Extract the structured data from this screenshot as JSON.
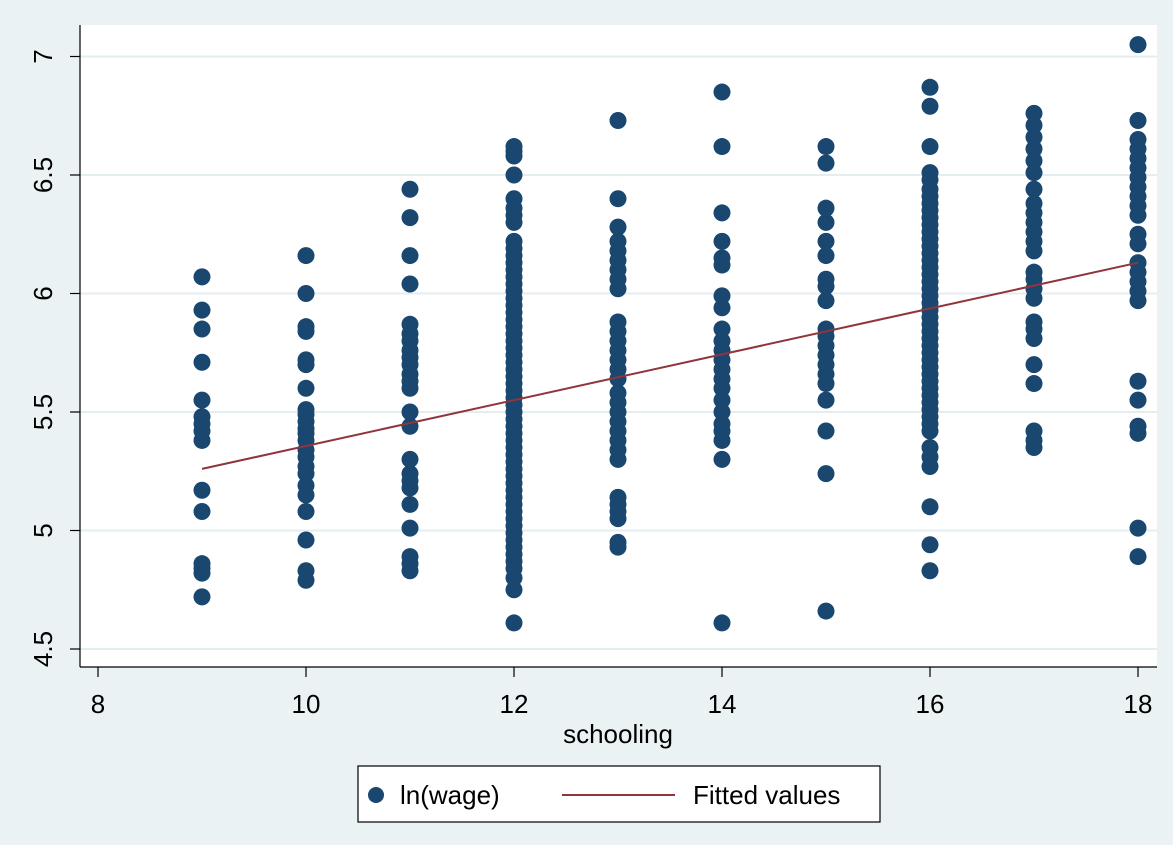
{
  "chart_data": {
    "type": "scatter",
    "title": "",
    "xlabel": "schooling",
    "ylabel": "",
    "xlim": [
      8,
      18.1
    ],
    "ylim": [
      4.45,
      7.1
    ],
    "xticks": [
      8,
      10,
      12,
      14,
      16,
      18
    ],
    "yticks": [
      4.5,
      5,
      5.5,
      6,
      6.5,
      7
    ],
    "xtick_labels": [
      "8",
      "10",
      "12",
      "14",
      "16",
      "18"
    ],
    "ytick_labels": [
      "4.5",
      "5",
      "5.5",
      "6",
      "6.5",
      "7"
    ],
    "grid": "horizontal",
    "legend_position": "bottom",
    "colors": {
      "background": "#eaf2f3",
      "plot_area": "#ffffff",
      "gridline": "#e4eef0",
      "marker": "#1a476f",
      "fit_line": "#90353b"
    },
    "series": [
      {
        "name": "ln(wage)",
        "kind": "scatter",
        "points": {
          "9": [
            4.72,
            4.82,
            4.84,
            4.86,
            5.08,
            5.17,
            5.38,
            5.42,
            5.45,
            5.48,
            5.55,
            5.71,
            5.85,
            5.93,
            6.07
          ],
          "10": [
            4.79,
            4.83,
            4.96,
            5.08,
            5.15,
            5.19,
            5.24,
            5.27,
            5.31,
            5.34,
            5.38,
            5.41,
            5.43,
            5.46,
            5.49,
            5.51,
            5.6,
            5.7,
            5.72,
            5.84,
            5.86,
            6.0,
            6.16
          ],
          "11": [
            4.83,
            4.86,
            4.89,
            5.01,
            5.11,
            5.18,
            5.21,
            5.24,
            5.3,
            5.44,
            5.5,
            5.6,
            5.63,
            5.66,
            5.7,
            5.73,
            5.76,
            5.8,
            5.83,
            5.87,
            6.04,
            6.16,
            6.32,
            6.44
          ],
          "12": [
            4.61,
            4.75,
            4.8,
            4.84,
            4.87,
            4.9,
            4.93,
            4.96,
            4.99,
            5.02,
            5.05,
            5.08,
            5.11,
            5.14,
            5.17,
            5.2,
            5.23,
            5.26,
            5.29,
            5.32,
            5.35,
            5.38,
            5.41,
            5.44,
            5.47,
            5.5,
            5.53,
            5.56,
            5.59,
            5.62,
            5.65,
            5.68,
            5.71,
            5.74,
            5.77,
            5.8,
            5.83,
            5.86,
            5.89,
            5.92,
            5.95,
            5.98,
            6.01,
            6.04,
            6.07,
            6.1,
            6.13,
            6.16,
            6.19,
            6.22,
            6.3,
            6.33,
            6.36,
            6.4,
            6.5,
            6.58,
            6.6,
            6.62
          ],
          "13": [
            4.93,
            4.95,
            5.05,
            5.08,
            5.11,
            5.14,
            5.3,
            5.34,
            5.38,
            5.42,
            5.46,
            5.5,
            5.54,
            5.58,
            5.64,
            5.68,
            5.72,
            5.76,
            5.8,
            5.84,
            5.88,
            6.02,
            6.06,
            6.1,
            6.14,
            6.18,
            6.22,
            6.28,
            6.4,
            6.73
          ],
          "14": [
            4.61,
            5.3,
            5.38,
            5.42,
            5.45,
            5.5,
            5.55,
            5.6,
            5.64,
            5.68,
            5.72,
            5.76,
            5.8,
            5.85,
            5.94,
            5.99,
            6.12,
            6.15,
            6.22,
            6.34,
            6.62,
            6.85
          ],
          "15": [
            4.66,
            5.24,
            5.42,
            5.55,
            5.62,
            5.66,
            5.7,
            5.74,
            5.78,
            5.82,
            5.85,
            5.97,
            6.03,
            6.06,
            6.16,
            6.22,
            6.3,
            6.36,
            6.55,
            6.62
          ],
          "16": [
            4.83,
            4.94,
            5.1,
            5.27,
            5.31,
            5.35,
            5.42,
            5.45,
            5.48,
            5.51,
            5.54,
            5.57,
            5.6,
            5.63,
            5.66,
            5.69,
            5.72,
            5.75,
            5.78,
            5.81,
            5.84,
            5.87,
            5.9,
            5.93,
            5.96,
            5.99,
            6.02,
            6.05,
            6.08,
            6.11,
            6.14,
            6.17,
            6.2,
            6.23,
            6.26,
            6.29,
            6.32,
            6.35,
            6.38,
            6.41,
            6.44,
            6.48,
            6.51,
            6.62,
            6.79,
            6.87
          ],
          "17": [
            5.35,
            5.38,
            5.42,
            5.62,
            5.7,
            5.81,
            5.85,
            5.88,
            5.98,
            6.02,
            6.06,
            6.09,
            6.18,
            6.22,
            6.26,
            6.3,
            6.34,
            6.38,
            6.44,
            6.51,
            6.56,
            6.61,
            6.66,
            6.71,
            6.76
          ],
          "18": [
            4.89,
            5.01,
            5.41,
            5.44,
            5.55,
            5.63,
            5.97,
            6.01,
            6.05,
            6.09,
            6.13,
            6.21,
            6.25,
            6.33,
            6.37,
            6.41,
            6.45,
            6.49,
            6.53,
            6.57,
            6.61,
            6.65,
            6.73,
            7.05
          ]
        }
      },
      {
        "name": "Fitted values",
        "kind": "line",
        "x": [
          9,
          18
        ],
        "y": [
          5.26,
          6.13
        ]
      }
    ]
  }
}
